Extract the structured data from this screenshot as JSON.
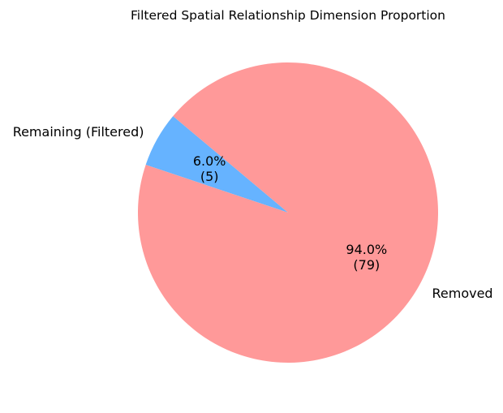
{
  "chart_data": {
    "type": "pie",
    "title": "Filtered Spatial Relationship Dimension Proportion",
    "slices": [
      {
        "label": "Remaining (Filtered)",
        "value": 5,
        "percent_label": "6.0%",
        "count_label": "(5)",
        "color": "#66b3ff"
      },
      {
        "label": "Removed",
        "value": 79,
        "percent_label": "94.0%",
        "count_label": "(79)",
        "color": "#ff9999"
      }
    ],
    "start_angle_deg": 140,
    "direction": "counterclockwise",
    "legend": "none"
  }
}
